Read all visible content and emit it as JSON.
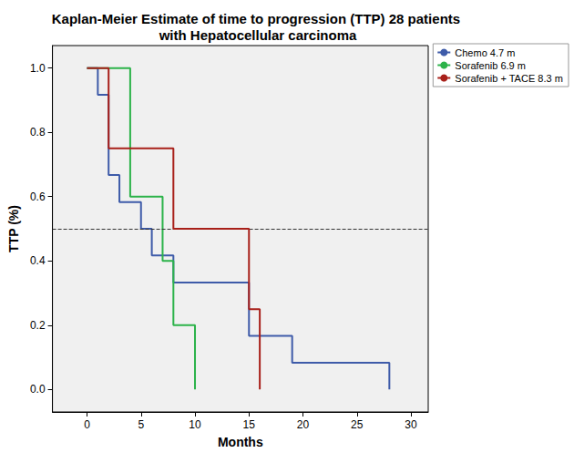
{
  "chart_data": {
    "type": "line",
    "line_style": "step",
    "title": "Kaplan-Meier Estimate of time to progression (TTP) 28 patients with Hepatocellular carcinoma",
    "x_label": "Months",
    "y_label": "TTP (%)",
    "xlim": [
      -3.2,
      31.6
    ],
    "xticks": [
      0,
      5,
      10,
      15,
      20,
      25,
      30
    ],
    "ylim": [
      -0.07,
      1.07
    ],
    "yticks": [
      {
        "value": 0,
        "label": "0.0"
      },
      {
        "value": 0.2,
        "label": "0.2"
      },
      {
        "value": 0.4,
        "label": "0.4"
      },
      {
        "value": 0.6,
        "label": "0.6"
      },
      {
        "value": 0.8,
        "label": "0.8"
      },
      {
        "value": 1,
        "label": "1.0"
      }
    ],
    "reference_y": 0.5,
    "grid": false,
    "legend": "upper right",
    "series": [
      {
        "name": "Chemo 4.7 m",
        "color": "#3e5ba9",
        "x": [
          0,
          1,
          2,
          3,
          5,
          6,
          8,
          15,
          19,
          28
        ],
        "values": [
          1,
          0.917,
          0.667,
          0.583,
          0.5,
          0.417,
          0.333,
          0.167,
          0.083,
          0
        ]
      },
      {
        "name": "Sorafenib 6.9 m",
        "color": "#2cb34a",
        "x": [
          0,
          4,
          7,
          8,
          10
        ],
        "values": [
          1,
          0.6,
          0.4,
          0.2,
          0
        ]
      },
      {
        "name": "Sorafenib + TACE 8.3 m",
        "color": "#a8201a",
        "x": [
          0,
          2,
          8,
          15,
          16
        ],
        "values": [
          1,
          0.75,
          0.5,
          0.25,
          0
        ]
      }
    ]
  }
}
